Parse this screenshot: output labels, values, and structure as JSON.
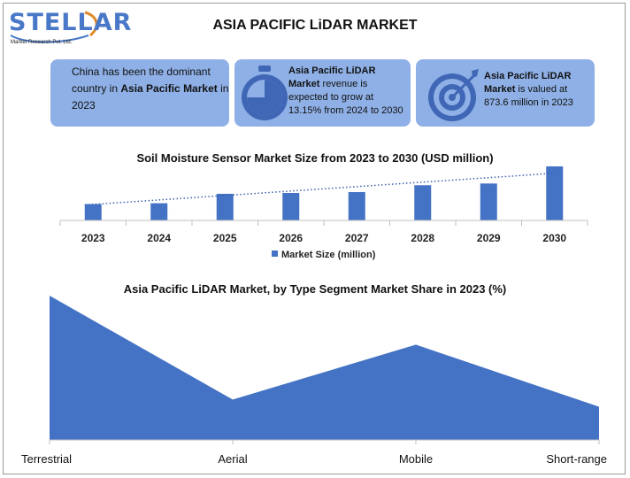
{
  "brand": {
    "name": "STELLAR",
    "tagline": "Market Research Pvt. Ltd.",
    "accent": "#4a78c8"
  },
  "title": "ASIA PACIFIC LiDAR MARKET",
  "cards": {
    "c1": {
      "pre": "China has been the dominant country in ",
      "bold": "Asia Pacific Market",
      "post": " in 2023"
    },
    "c2": {
      "bold": "Asia Pacific LiDAR Market",
      "post": " revenue is expected to grow at 13.15% from 2024 to 2030",
      "icon": "stopwatch-icon"
    },
    "c3": {
      "bold": "Asia Pacific LiDAR Market",
      "post": " is valued at 873.6 million in 2023",
      "icon": "target-icon"
    },
    "card_color": "#8fb0e6"
  },
  "chart_data": [
    {
      "type": "bar",
      "title": "Soil Moisture Sensor Market Size from 2023 to 2030 (USD million)",
      "categories": [
        "2023",
        "2024",
        "2025",
        "2026",
        "2027",
        "2028",
        "2029",
        "2030"
      ],
      "series": [
        {
          "name": "Market Size (million)",
          "values": [
            19,
            20,
            31,
            32,
            33,
            41,
            43,
            63
          ],
          "color": "#4472c4"
        }
      ],
      "trendline": {
        "style": "dotted",
        "from": 18,
        "to": 55
      },
      "ylim": [
        0,
        65
      ],
      "legend": "bottom",
      "grid": false
    },
    {
      "type": "area",
      "title": "Asia Pacific LiDAR Market, by Type Segment Market Share in 2023 (%)",
      "categories": [
        "Terrestrial",
        "Aerial",
        "Mobile",
        "Short-range"
      ],
      "values": [
        100,
        28,
        66,
        23
      ],
      "ylim": [
        0,
        100
      ],
      "color": "#4472c4",
      "grid": false
    }
  ]
}
